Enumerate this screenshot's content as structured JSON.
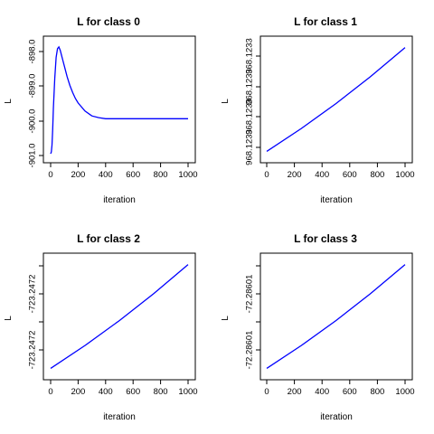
{
  "chart_data": [
    {
      "type": "line",
      "title": "L for class 0",
      "xlabel": "iteration",
      "ylabel": "L",
      "x_ticks": [
        "0",
        "200",
        "400",
        "600",
        "800",
        "1000"
      ],
      "y_ticks": [
        "-901.0",
        "-900.0",
        "-899.0",
        "-898.0"
      ],
      "xlim": [
        0,
        1000
      ],
      "ylim": [
        -901.05,
        -897.85
      ],
      "line_color": "#0000ff",
      "series": [
        {
          "x": [
            0,
            5,
            10,
            15,
            20,
            30,
            40,
            50,
            60,
            70,
            80,
            90,
            100,
            120,
            140,
            160,
            180,
            200,
            250,
            300,
            350,
            400,
            450,
            500,
            600,
            700,
            800,
            900,
            1000
          ],
          "y": [
            -901.0,
            -900.95,
            -900.75,
            -900.3,
            -899.7,
            -898.85,
            -898.25,
            -898.0,
            -897.95,
            -898.05,
            -898.2,
            -898.35,
            -898.5,
            -898.8,
            -899.05,
            -899.25,
            -899.42,
            -899.55,
            -899.78,
            -899.92,
            -899.97,
            -900.0,
            -900.0,
            -900.0,
            -900.0,
            -900.0,
            -900.0,
            -900.0,
            -900.0
          ]
        }
      ]
    },
    {
      "type": "line",
      "title": "L for class 1",
      "xlabel": "iteration",
      "ylabel": "L",
      "x_ticks": [
        "0",
        "200",
        "400",
        "600",
        "800",
        "1000"
      ],
      "y_ticks": [
        "968.1233",
        "968.1233",
        "968.1233",
        "968.1233"
      ],
      "xlim": [
        0,
        1000
      ],
      "ylim": [
        -0.04,
        1.04
      ],
      "y_values_relative": true,
      "line_color": "#0000ff",
      "series": [
        {
          "x": [
            0,
            250,
            500,
            750,
            1000
          ],
          "y": [
            0,
            0.22,
            0.46,
            0.72,
            1
          ]
        }
      ]
    },
    {
      "type": "line",
      "title": "L for class 2",
      "xlabel": "iteration",
      "ylabel": "L",
      "x_ticks": [
        "0",
        "200",
        "400",
        "600",
        "800",
        "1000"
      ],
      "y_ticks": [
        "-723.2472",
        "",
        "-723.2472",
        ""
      ],
      "xlim": [
        0,
        1000
      ],
      "ylim": [
        -0.04,
        1.04
      ],
      "y_values_relative": true,
      "line_color": "#0000ff",
      "series": [
        {
          "x": [
            0,
            250,
            500,
            750,
            1000
          ],
          "y": [
            0,
            0.22,
            0.46,
            0.72,
            1
          ]
        }
      ]
    },
    {
      "type": "line",
      "title": "L for class 3",
      "xlabel": "iteration",
      "ylabel": "L",
      "x_ticks": [
        "0",
        "200",
        "400",
        "600",
        "800",
        "1000"
      ],
      "y_ticks": [
        "-72.28601",
        "",
        "-72.28601",
        ""
      ],
      "xlim": [
        0,
        1000
      ],
      "ylim": [
        -0.04,
        1.04
      ],
      "y_values_relative": true,
      "line_color": "#0000ff",
      "series": [
        {
          "x": [
            0,
            250,
            500,
            750,
            1000
          ],
          "y": [
            0,
            0.22,
            0.46,
            0.72,
            1
          ]
        }
      ]
    }
  ]
}
